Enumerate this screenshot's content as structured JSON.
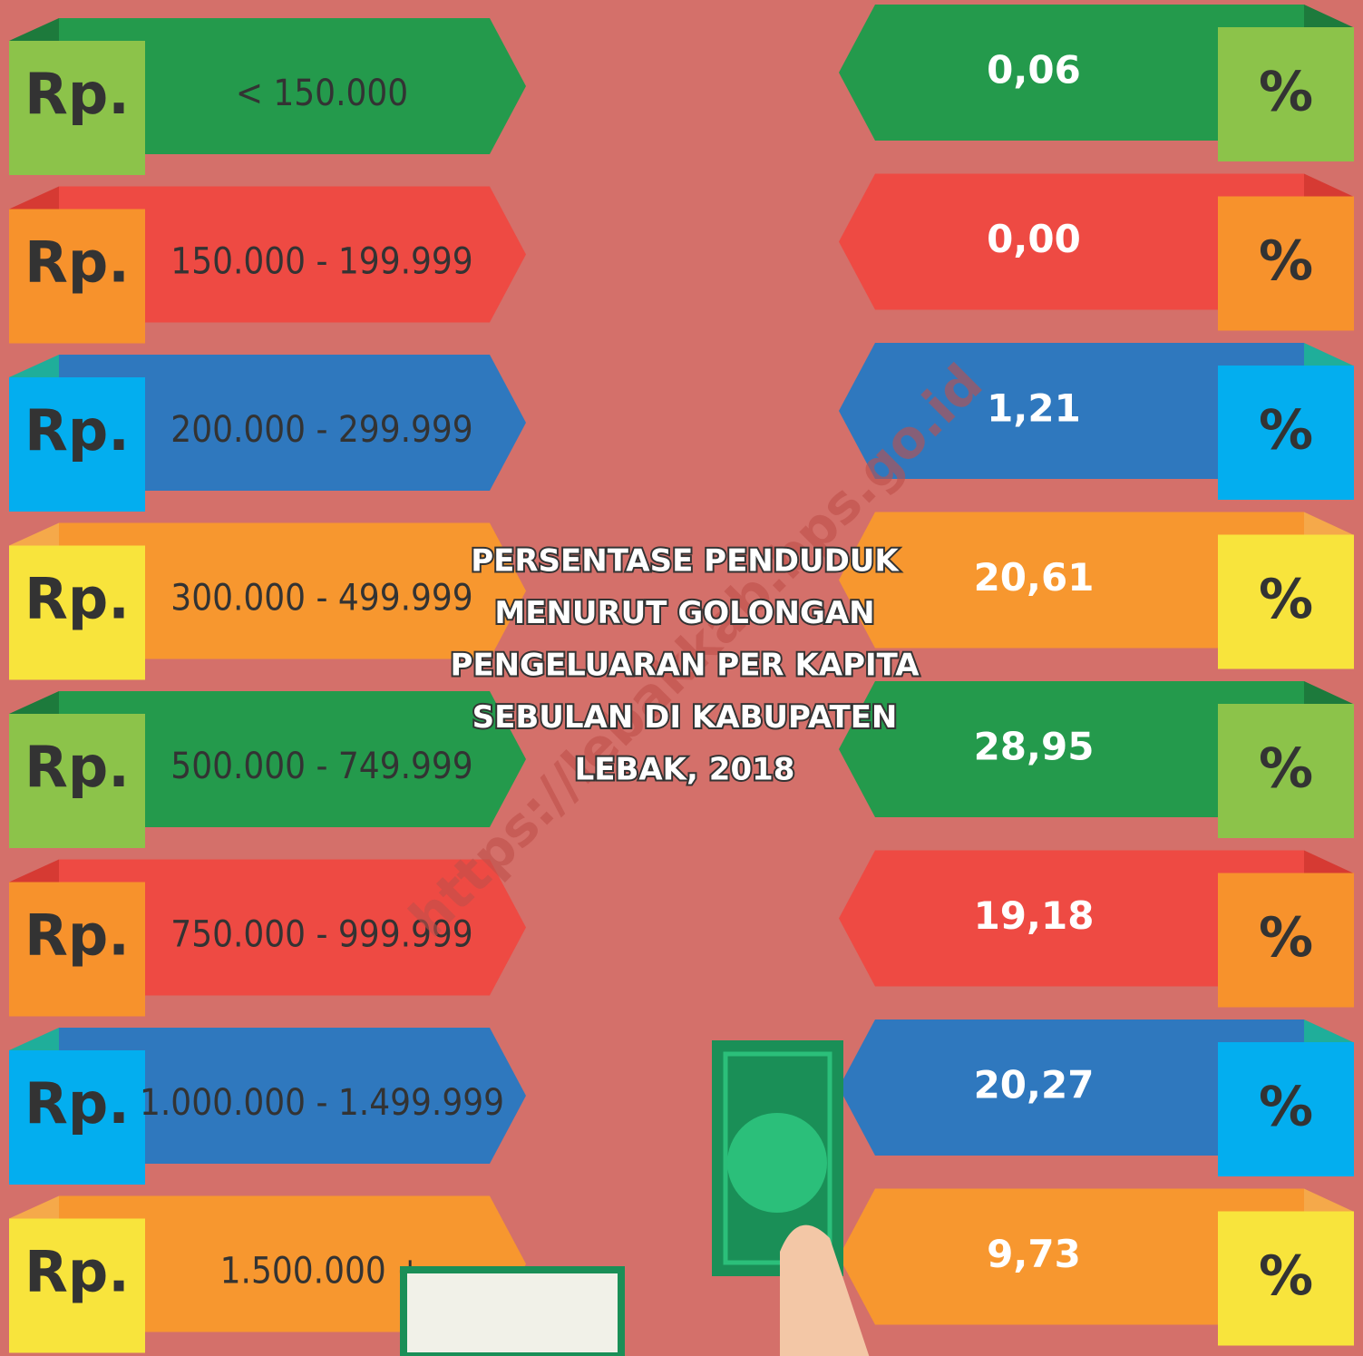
{
  "title_lines": [
    "PERSENTASE PENDUDUK",
    "MENURUT GOLONGAN",
    "PENGELUARAN PER KAPITA",
    "SEBULAN DI KABUPATEN",
    "LEBAK, 2018"
  ],
  "watermark": "https://lebakkab.bps.go.id",
  "currency": "Rp.",
  "unit": "%",
  "rows": [
    {
      "range": "< 150.000",
      "value": "0,06"
    },
    {
      "range": "150.000 - 199.999",
      "value": "0,00"
    },
    {
      "range": "200.000 - 299.999",
      "value": "1,21"
    },
    {
      "range": "300.000 - 499.999",
      "value": "20,61"
    },
    {
      "range": "500.000 - 749.999",
      "value": "28,95"
    },
    {
      "range": "750.000 - 999.999",
      "value": "19,18"
    },
    {
      "range": "1.000.000 - 1.499.999",
      "value": "20,27"
    },
    {
      "range": "1.500.000 +",
      "value": "9,73"
    }
  ]
}
